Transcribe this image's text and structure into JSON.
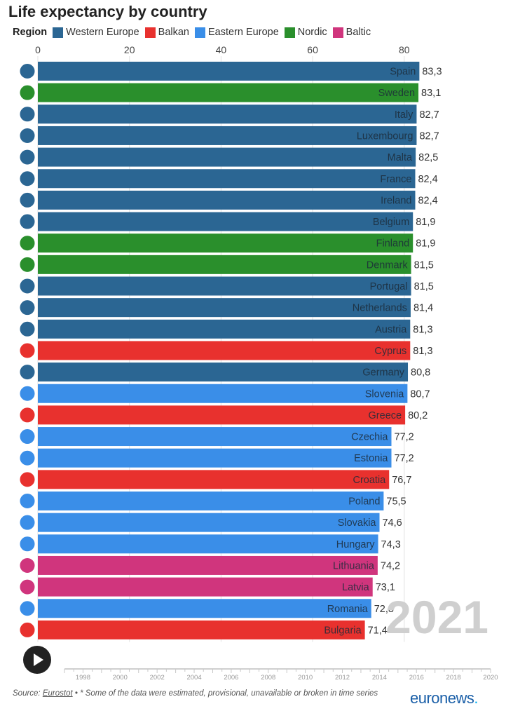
{
  "chart_data": {
    "type": "bar",
    "title": "Life expectancy by country",
    "legend": {
      "title": "Region",
      "placement": "top-left",
      "items": [
        {
          "name": "Western Europe",
          "color": "#2b6693"
        },
        {
          "name": "Balkan",
          "color": "#e8312e"
        },
        {
          "name": "Eastern Europe",
          "color": "#3a8ee8"
        },
        {
          "name": "Nordic",
          "color": "#2a8f2c"
        },
        {
          "name": "Baltic",
          "color": "#d0357d"
        }
      ]
    },
    "xlim": [
      0,
      85
    ],
    "xticks": [
      "0",
      "20",
      "40",
      "60",
      "80"
    ],
    "xtick_values": [
      0,
      20,
      40,
      60,
      80
    ],
    "grid": true,
    "categories": [
      "Spain",
      "Sweden",
      "Italy",
      "Luxembourg",
      "Malta",
      "France",
      "Ireland",
      "Belgium",
      "Finland",
      "Denmark",
      "Portugal",
      "Netherlands",
      "Austria",
      "Cyprus",
      "Germany",
      "Slovenia",
      "Greece",
      "Czechia",
      "Estonia",
      "Croatia",
      "Poland",
      "Slovakia",
      "Hungary",
      "Lithuania",
      "Latvia",
      "Romania",
      "Bulgaria"
    ],
    "values": [
      83.3,
      83.1,
      82.7,
      82.7,
      82.5,
      82.4,
      82.4,
      81.9,
      81.9,
      81.5,
      81.5,
      81.4,
      81.3,
      81.3,
      80.8,
      80.7,
      80.2,
      77.2,
      77.2,
      76.7,
      75.5,
      74.6,
      74.3,
      74.2,
      73.1,
      72.8,
      71.4
    ],
    "value_labels": [
      "83,3",
      "83,1",
      "82,7",
      "82,7",
      "82,5",
      "82,4",
      "82,4",
      "81,9",
      "81,9",
      "81,5",
      "81,5",
      "81,4",
      "81,3",
      "81,3",
      "80,8",
      "80,7",
      "80,2",
      "77,2",
      "77,2",
      "76,7",
      "75,5",
      "74,6",
      "74,3",
      "74,2",
      "73,1",
      "72,8",
      "71,4"
    ],
    "regions": [
      "Western Europe",
      "Nordic",
      "Western Europe",
      "Western Europe",
      "Western Europe",
      "Western Europe",
      "Western Europe",
      "Western Europe",
      "Nordic",
      "Nordic",
      "Western Europe",
      "Western Europe",
      "Western Europe",
      "Balkan",
      "Western Europe",
      "Eastern Europe",
      "Balkan",
      "Eastern Europe",
      "Eastern Europe",
      "Balkan",
      "Eastern Europe",
      "Eastern Europe",
      "Eastern Europe",
      "Baltic",
      "Baltic",
      "Eastern Europe",
      "Balkan"
    ],
    "year": "2021"
  },
  "timeline": {
    "ticks": [
      "1998",
      "2000",
      "2002",
      "2004",
      "2006",
      "2008",
      "2010",
      "2012",
      "2014",
      "2016",
      "2018",
      "2020"
    ]
  },
  "source": {
    "prefix": "Source: ",
    "link": "Eurostot",
    "note": " • * Some of the data were estimated, provisional, unavailable or broken in time series"
  },
  "logo": {
    "text": "euronews",
    "dot": "."
  },
  "icons": {
    "play": "play-icon",
    "flags": "country-flag-icon"
  }
}
